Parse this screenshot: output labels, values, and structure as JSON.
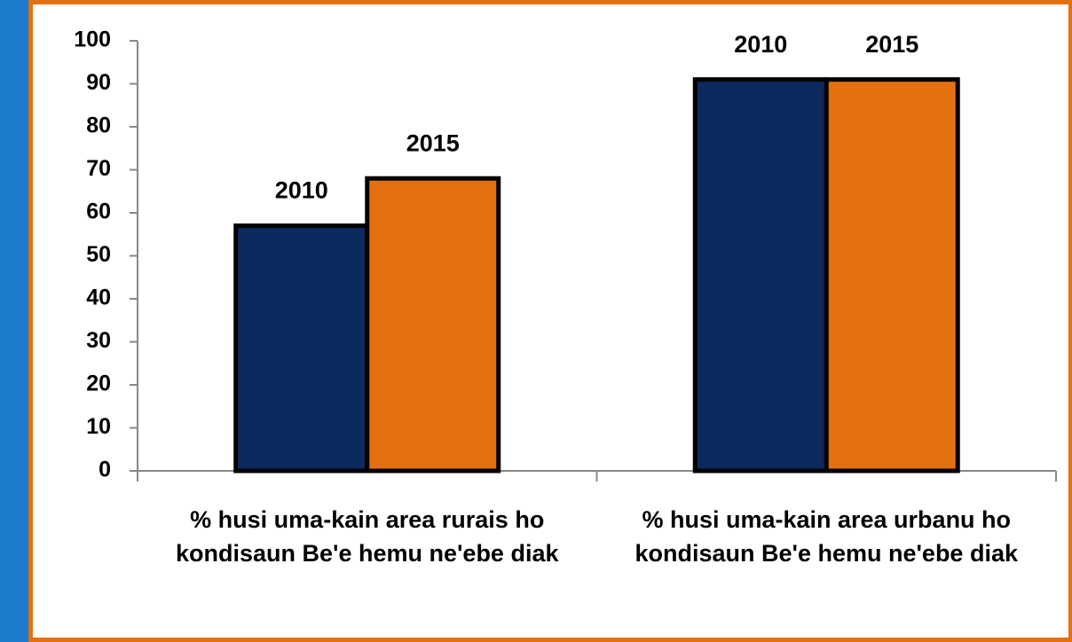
{
  "chart_data": {
    "type": "bar",
    "categories": [
      "% husi uma-kain area rurais ho kondisaun Be'e hemu ne'ebe diak",
      "% husi uma-kain area urbanu ho kondisaun Be'e hemu ne'ebe diak"
    ],
    "series": [
      {
        "name": "2010",
        "color": "#0d2a5e",
        "values": [
          57,
          91
        ]
      },
      {
        "name": "2015",
        "color": "#e5700f",
        "values": [
          68,
          91
        ]
      }
    ],
    "ylim": [
      0,
      100
    ],
    "yticks": [
      0,
      10,
      20,
      30,
      40,
      50,
      60,
      70,
      80,
      90,
      100
    ],
    "grid": false
  }
}
